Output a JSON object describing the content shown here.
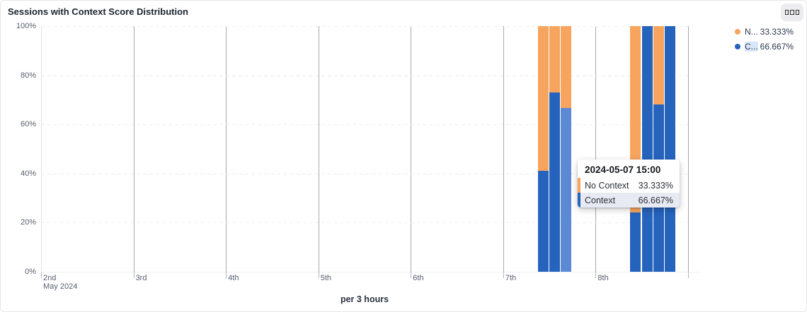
{
  "header": {
    "title": "Sessions with Context Score Distribution"
  },
  "legend": {
    "items": [
      {
        "label": "N...",
        "value": "33.333%",
        "color": "#f7a45f",
        "highlighted": false
      },
      {
        "label": "C...",
        "value": "66.667%",
        "color": "#2563bd",
        "highlighted": true
      }
    ]
  },
  "tooltip": {
    "title": "2024-05-07 15:00",
    "rows": [
      {
        "label": "No Context",
        "value": "33.333%",
        "color": "#f7a45f",
        "highlighted": false
      },
      {
        "label": "Context",
        "value": "66.667%",
        "color": "#2563bd",
        "highlighted": true
      }
    ]
  },
  "chart_data": {
    "type": "bar",
    "stacked": true,
    "title": "Sessions with Context Score Distribution",
    "xlabel": "per 3 hours",
    "ylabel": "",
    "ylim": [
      0,
      100
    ],
    "y_ticks": [
      "0%",
      "20%",
      "40%",
      "60%",
      "80%",
      "100%"
    ],
    "x_ticks": [
      "2nd",
      "3rd",
      "4th",
      "5th",
      "6th",
      "7th",
      "8th"
    ],
    "x_axis_sub_label": "May 2024",
    "interval_hours": 3,
    "legend_position": "top-right",
    "grid": "horizontal-dashed-and-vertical-solid",
    "series": [
      {
        "name": "Context",
        "color": "#2563bd",
        "highlight_color": "#5b89d4"
      },
      {
        "name": "No Context",
        "color": "#f7a45f"
      }
    ],
    "bars": [
      {
        "time": "2024-05-07 09:00",
        "context_pct": 41,
        "no_context_pct": 59,
        "highlighted": false
      },
      {
        "time": "2024-05-07 12:00",
        "context_pct": 73,
        "no_context_pct": 27,
        "highlighted": false
      },
      {
        "time": "2024-05-07 15:00",
        "context_pct": 66.667,
        "no_context_pct": 33.333,
        "highlighted": true
      },
      {
        "time": "2024-05-08 09:00",
        "context_pct": 24,
        "no_context_pct": 76,
        "highlighted": false
      },
      {
        "time": "2024-05-08 12:00",
        "context_pct": 100,
        "no_context_pct": 0,
        "highlighted": false
      },
      {
        "time": "2024-05-08 15:00",
        "context_pct": 68,
        "no_context_pct": 32,
        "highlighted": false
      },
      {
        "time": "2024-05-08 18:00",
        "context_pct": 100,
        "no_context_pct": 0,
        "highlighted": false
      }
    ]
  }
}
